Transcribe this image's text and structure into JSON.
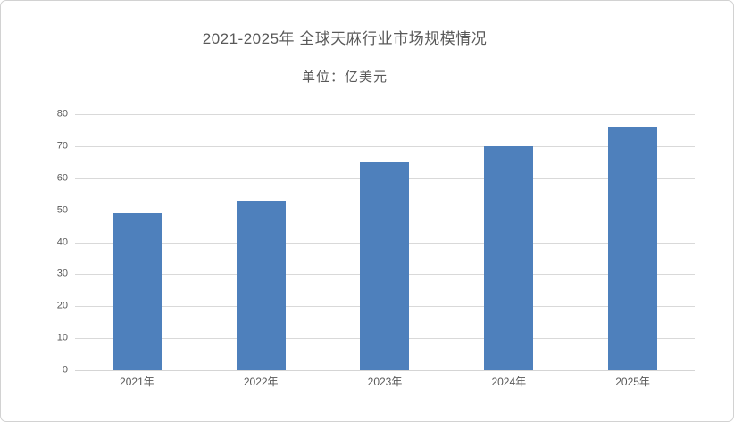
{
  "frame": {
    "background": "#ffffff",
    "border_color": "#d2d2d2"
  },
  "chart_data": {
    "type": "bar",
    "title": "2021-2025年 全球天麻行业市场规模情况",
    "subtitle": "单位：亿美元",
    "categories": [
      "2021年",
      "2022年",
      "2023年",
      "2024年",
      "2025年"
    ],
    "values": [
      49,
      53,
      65,
      70,
      76
    ],
    "xlabel": "",
    "ylabel": "",
    "ylim": [
      0,
      80
    ],
    "yticks": [
      0,
      10,
      20,
      30,
      40,
      50,
      60,
      70,
      80
    ],
    "grid": true,
    "legend": false,
    "bar_color": "#4e80bc",
    "gridline_color": "#d9d9d9",
    "axis_line_color": "#d5d5d5",
    "axis_text_color": "#595959",
    "title_color": "#595959"
  }
}
